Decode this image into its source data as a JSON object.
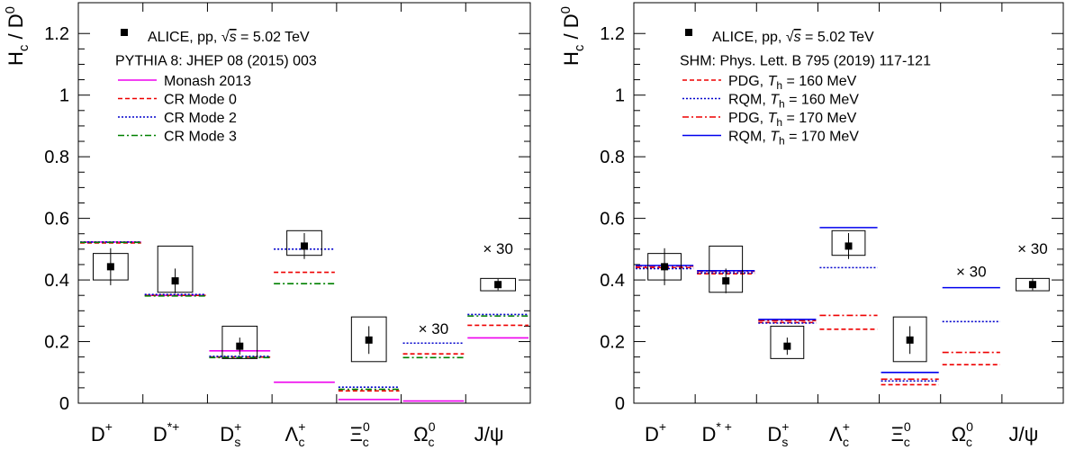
{
  "chart_data": [
    {
      "type": "scatter",
      "ylabel": "H",
      "ylabel_sub": "c",
      "ylabel_den": "D",
      "ylabel_den_sup": "0",
      "ylim": [
        0,
        1.3
      ],
      "yticks": [
        "0",
        "0.2",
        "0.4",
        "0.6",
        "0.8",
        "1",
        "1.2"
      ],
      "categories": [
        {
          "base": "D",
          "sup": "+",
          "sub": ""
        },
        {
          "base": "D",
          "sup": "*+",
          "sub": ""
        },
        {
          "base": "D",
          "sup": "+",
          "sub": "s"
        },
        {
          "base": "Λ",
          "sup": "+",
          "sub": "c"
        },
        {
          "base": "Ξ",
          "sup": "0",
          "sub": "c"
        },
        {
          "base": "Ω",
          "sup": "0",
          "sub": "c"
        },
        {
          "base": "J/ψ",
          "sup": "",
          "sub": ""
        }
      ],
      "data": {
        "name": "ALICE, pp, √s = 5.02 TeV",
        "legend_pre": "ALICE, pp, ",
        "legend_s": "s",
        "legend_post": " = 5.02 TeV",
        "y": [
          0.443,
          0.397,
          0.185,
          0.51,
          0.205,
          null,
          0.385
        ],
        "stat": [
          0.06,
          0.04,
          0.028,
          0.042,
          0.045,
          null,
          0.018
        ],
        "sys_low": [
          0.4,
          0.36,
          0.145,
          0.48,
          0.135,
          null,
          0.365
        ],
        "sys_high": [
          0.486,
          0.51,
          0.25,
          0.56,
          0.28,
          null,
          0.405
        ]
      },
      "model_header": "PYTHIA 8: JHEP 08 (2015) 003",
      "series": [
        {
          "name": "Monash 2013",
          "color": "#ee00ee",
          "dash": "solid",
          "values": [
            0.523,
            0.35,
            0.17,
            0.068,
            0.012,
            0.007,
            0.212
          ]
        },
        {
          "name": "CR Mode 0",
          "color": "#ee0000",
          "dash": "dashed",
          "values": [
            0.52,
            0.35,
            0.15,
            0.425,
            0.04,
            0.16,
            0.253
          ]
        },
        {
          "name": "CR Mode 2",
          "color": "#0000cc",
          "dash": "dotted",
          "values": [
            0.523,
            0.353,
            0.152,
            0.5,
            0.052,
            0.195,
            0.288
          ]
        },
        {
          "name": "CR Mode 3",
          "color": "#008000",
          "dash": "dashdot",
          "values": [
            0.522,
            0.348,
            0.148,
            0.388,
            0.045,
            0.148,
            0.283
          ]
        }
      ],
      "annotations": [
        {
          "text": "× 30",
          "category": 6,
          "y": 0.485
        },
        {
          "text": "× 30",
          "category": 5,
          "y": 0.225
        }
      ]
    },
    {
      "type": "scatter",
      "ylabel": "H",
      "ylabel_sub": "c",
      "ylabel_den": "D",
      "ylabel_den_sup": "0",
      "ylim": [
        0,
        1.3
      ],
      "yticks": [
        "0",
        "0.2",
        "0.4",
        "0.6",
        "0.8",
        "1",
        "1.2"
      ],
      "categories": [
        {
          "base": "D",
          "sup": "+",
          "sub": ""
        },
        {
          "base": "D",
          "sup": "* +",
          "sub": ""
        },
        {
          "base": "D",
          "sup": "+",
          "sub": "s"
        },
        {
          "base": "Λ",
          "sup": "+",
          "sub": "c"
        },
        {
          "base": "Ξ",
          "sup": "0",
          "sub": "c"
        },
        {
          "base": "Ω",
          "sup": "0",
          "sub": "c"
        },
        {
          "base": "J/ψ",
          "sup": "",
          "sub": ""
        }
      ],
      "data": {
        "name": "ALICE, pp, √s = 5.02 TeV",
        "legend_pre": "ALICE, pp, ",
        "legend_s": "s",
        "legend_post": " = 5.02 TeV",
        "y": [
          0.443,
          0.397,
          0.185,
          0.51,
          0.205,
          null,
          0.385
        ],
        "stat": [
          0.06,
          0.04,
          0.028,
          0.042,
          0.045,
          null,
          0.018
        ],
        "sys_low": [
          0.4,
          0.36,
          0.145,
          0.48,
          0.135,
          null,
          0.365
        ],
        "sys_high": [
          0.486,
          0.51,
          0.25,
          0.56,
          0.28,
          null,
          0.405
        ]
      },
      "model_header": "SHM: Phys. Lett. B 795 (2019) 117-121",
      "series": [
        {
          "name": "PDG, T_h = 160 MeV",
          "label_pre": "PDG, ",
          "color": "#ee0000",
          "dash": "dashed",
          "values": [
            0.44,
            0.42,
            0.262,
            0.24,
            0.06,
            0.125,
            null
          ]
        },
        {
          "name": "RQM, T_h = 160 MeV",
          "label_pre": "RQM, ",
          "color": "#0000cc",
          "dash": "dotted",
          "values": [
            0.437,
            0.423,
            0.26,
            0.44,
            0.072,
            0.265,
            null
          ]
        },
        {
          "name": "PDG, T_h = 170 MeV",
          "label_pre": "PDG, ",
          "color": "#ee0000",
          "dash": "dashdot",
          "values": [
            0.445,
            0.428,
            0.268,
            0.285,
            0.078,
            0.165,
            null
          ]
        },
        {
          "name": "RQM, T_h = 170 MeV",
          "label_pre": "RQM, ",
          "color": "#0000ee",
          "dash": "solid",
          "values": [
            0.447,
            0.43,
            0.272,
            0.57,
            0.1,
            0.375,
            null
          ]
        }
      ],
      "series_label_T": "T",
      "series_label_sub": "h",
      "series_label_tails": [
        " = 160 MeV",
        " = 160 MeV",
        " = 170 MeV",
        " = 170 MeV"
      ],
      "annotations": [
        {
          "text": "× 30",
          "category": 6,
          "y": 0.485
        },
        {
          "text": "× 30",
          "category": 5,
          "y": 0.41
        }
      ]
    }
  ]
}
